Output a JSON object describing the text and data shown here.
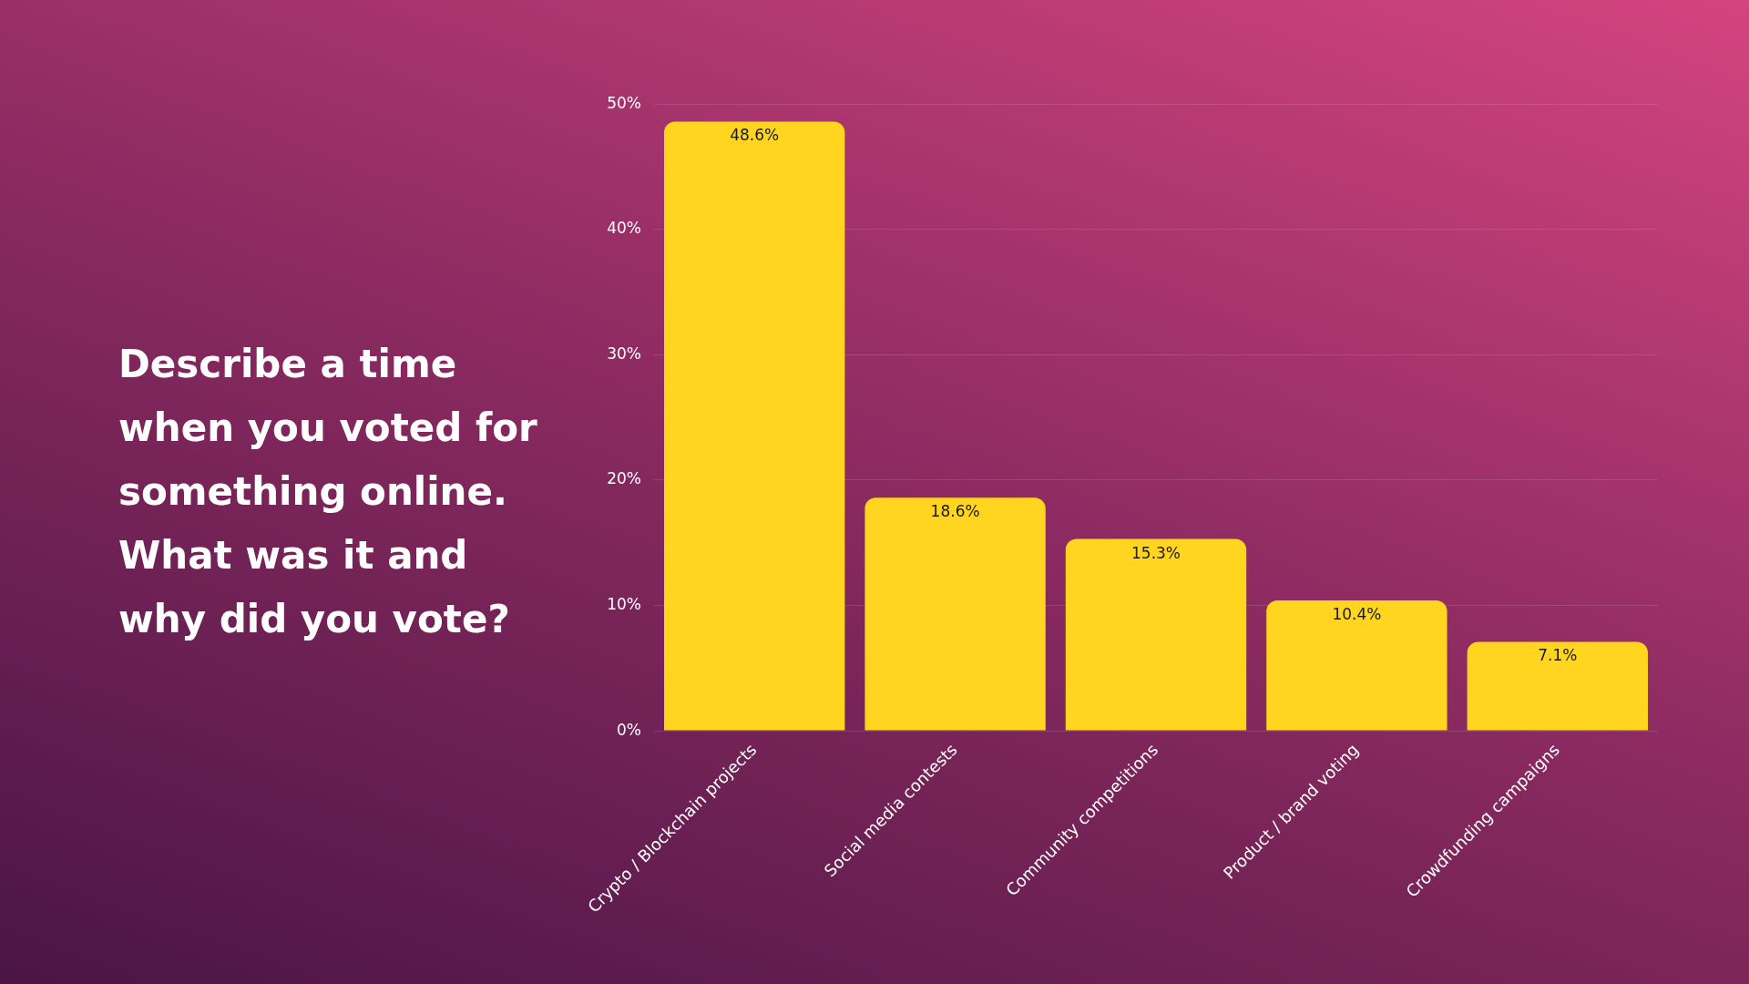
{
  "chart_data": {
    "type": "bar",
    "title": "Describe a time when you voted for something online. What was it and why did you vote?",
    "categories": [
      "Crypto / Blockchain projects",
      "Social media contests",
      "Community competitions",
      "Product / brand voting",
      "Crowdfunding campaigns"
    ],
    "values": [
      48.6,
      18.6,
      15.3,
      10.4,
      7.1
    ],
    "value_labels": [
      "48.6%",
      "18.6%",
      "15.3%",
      "10.4%",
      "7.1%"
    ],
    "color": "#ffd520",
    "ylim": [
      0,
      50
    ],
    "yticks": [
      {
        "value": 0,
        "label": "0%"
      },
      {
        "value": 10,
        "label": "10%"
      },
      {
        "value": 20,
        "label": "20%"
      },
      {
        "value": 30,
        "label": "30%"
      },
      {
        "value": 40,
        "label": "40%"
      },
      {
        "value": 50,
        "label": "50%"
      }
    ],
    "grid": "y",
    "legend": false
  }
}
